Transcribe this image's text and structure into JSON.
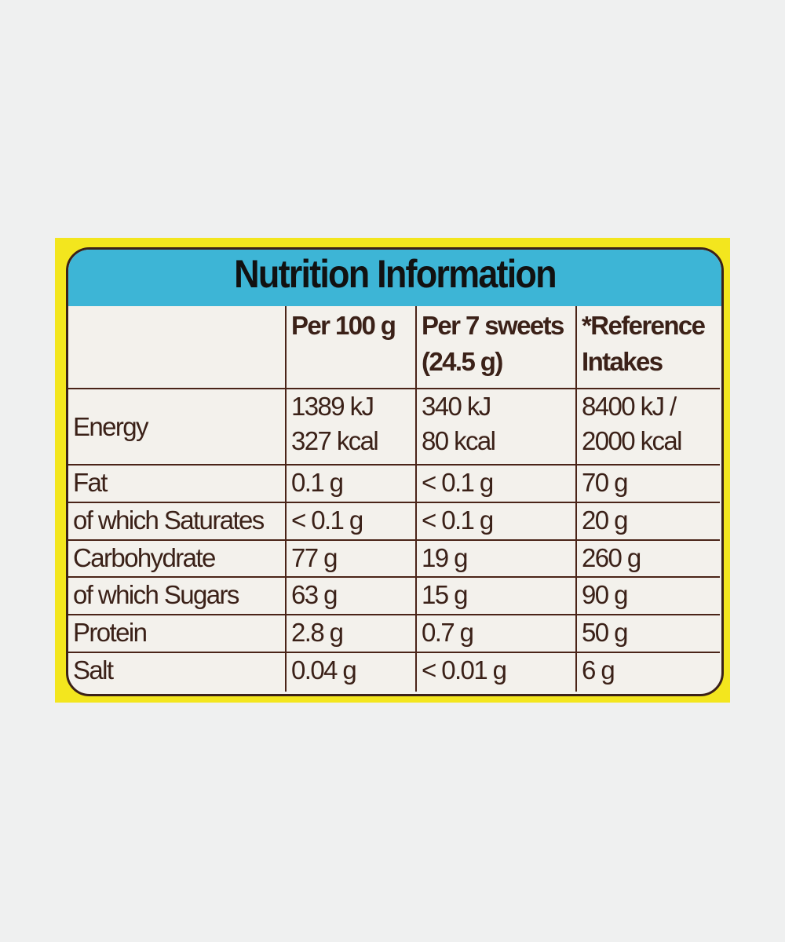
{
  "title": "Nutrition Information",
  "colors": {
    "background": "#eff0f0",
    "packaging_yellow": "#f3e61e",
    "header_blue": "#3db5d6",
    "text_brown": "#3b2118"
  },
  "columns": [
    "",
    "Per 100 g",
    "Per 7 sweets\n(24.5 g)",
    "*Reference\nIntakes"
  ],
  "column_lines": [
    [
      "",
      ""
    ],
    [
      "Per 100 g",
      ""
    ],
    [
      "Per 7 sweets",
      "(24.5 g)"
    ],
    [
      "*Reference",
      "Intakes"
    ]
  ],
  "rows": [
    {
      "name": "Energy",
      "per100": [
        "1389 kJ",
        "327 kcal"
      ],
      "per_serving": [
        "340 kJ",
        "80 kcal"
      ],
      "ri": [
        "8400 kJ /",
        "2000 kcal"
      ]
    },
    {
      "name": "Fat",
      "per100": "0.1 g",
      "per_serving": "< 0.1 g",
      "ri": "70 g"
    },
    {
      "name": "of which Saturates",
      "per100": "< 0.1 g",
      "per_serving": "< 0.1 g",
      "ri": "20 g"
    },
    {
      "name": "Carbohydrate",
      "per100": "77 g",
      "per_serving": "19 g",
      "ri": "260 g"
    },
    {
      "name": "of which Sugars",
      "per100": "63 g",
      "per_serving": "15 g",
      "ri": "90 g"
    },
    {
      "name": "Protein",
      "per100": "2.8 g",
      "per_serving": "0.7 g",
      "ri": "50 g"
    },
    {
      "name": "Salt",
      "per100": "0.04 g",
      "per_serving": "< 0.01 g",
      "ri": "6 g"
    }
  ]
}
